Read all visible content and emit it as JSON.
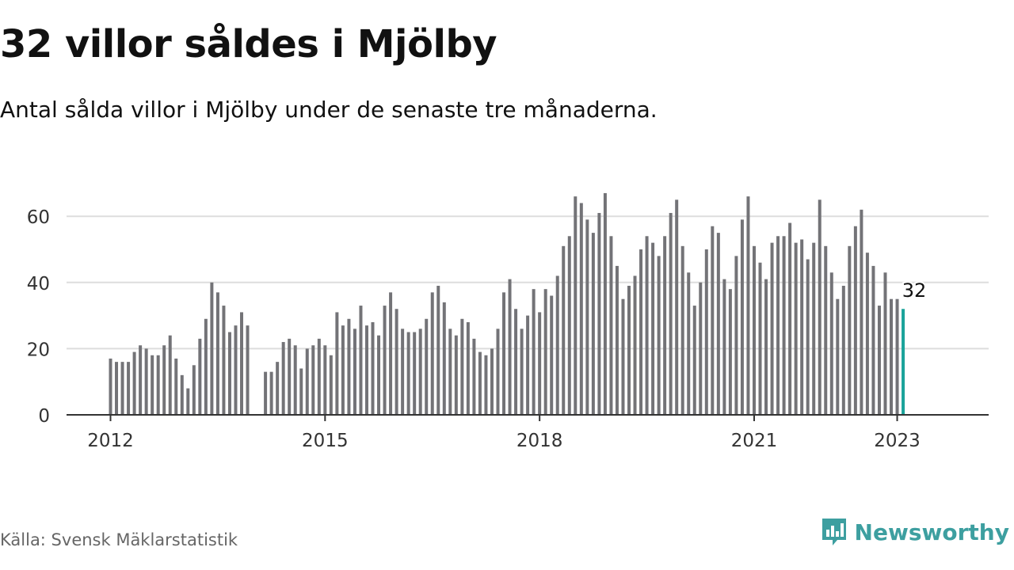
{
  "header": {
    "title": "32 villor såldes i Mjölby",
    "subtitle": "Antal sålda villor i Mjölby under de senaste tre månaderna."
  },
  "footer": {
    "source": "Källa: Svensk Mäklarstatistik",
    "brand": "Newsworthy",
    "brand_icon": "bar-chart-logo-icon"
  },
  "colors": {
    "bar": "#737377",
    "highlight": "#1aa39a",
    "grid": "#dddddd",
    "axis": "#333333",
    "brand": "#3d9fa0"
  },
  "chart_data": {
    "type": "bar",
    "title": "32 villor såldes i Mjölby",
    "subtitle": "Antal sålda villor i Mjölby under de senaste tre månaderna.",
    "xlabel": "",
    "ylabel": "",
    "ylim": [
      0,
      70
    ],
    "yticks": [
      0,
      20,
      40,
      60
    ],
    "grid": true,
    "x_start_year": 2012,
    "x_start_month": 1,
    "xtick_labels": [
      "2012",
      "2015",
      "2018",
      "2021",
      "2023"
    ],
    "values": [
      17,
      16,
      16,
      16,
      19,
      21,
      20,
      18,
      18,
      21,
      24,
      17,
      12,
      8,
      15,
      23,
      29,
      40,
      37,
      33,
      25,
      27,
      31,
      27,
      null,
      null,
      13,
      13,
      16,
      22,
      23,
      21,
      14,
      20,
      21,
      23,
      21,
      18,
      31,
      27,
      29,
      26,
      33,
      27,
      28,
      24,
      33,
      37,
      32,
      26,
      25,
      25,
      26,
      29,
      37,
      39,
      34,
      26,
      24,
      29,
      28,
      23,
      19,
      18,
      20,
      26,
      37,
      41,
      32,
      26,
      30,
      38,
      31,
      38,
      36,
      42,
      51,
      54,
      66,
      64,
      59,
      55,
      61,
      67,
      54,
      45,
      35,
      39,
      42,
      50,
      54,
      52,
      48,
      54,
      61,
      65,
      51,
      43,
      33,
      40,
      50,
      57,
      55,
      41,
      38,
      48,
      59,
      66,
      51,
      46,
      41,
      52,
      54,
      54,
      58,
      52,
      53,
      47,
      52,
      65,
      51,
      43,
      35,
      39,
      51,
      57,
      62,
      49,
      45,
      33,
      43,
      35,
      35,
      32
    ],
    "highlight_last": true,
    "data_label": "32"
  }
}
